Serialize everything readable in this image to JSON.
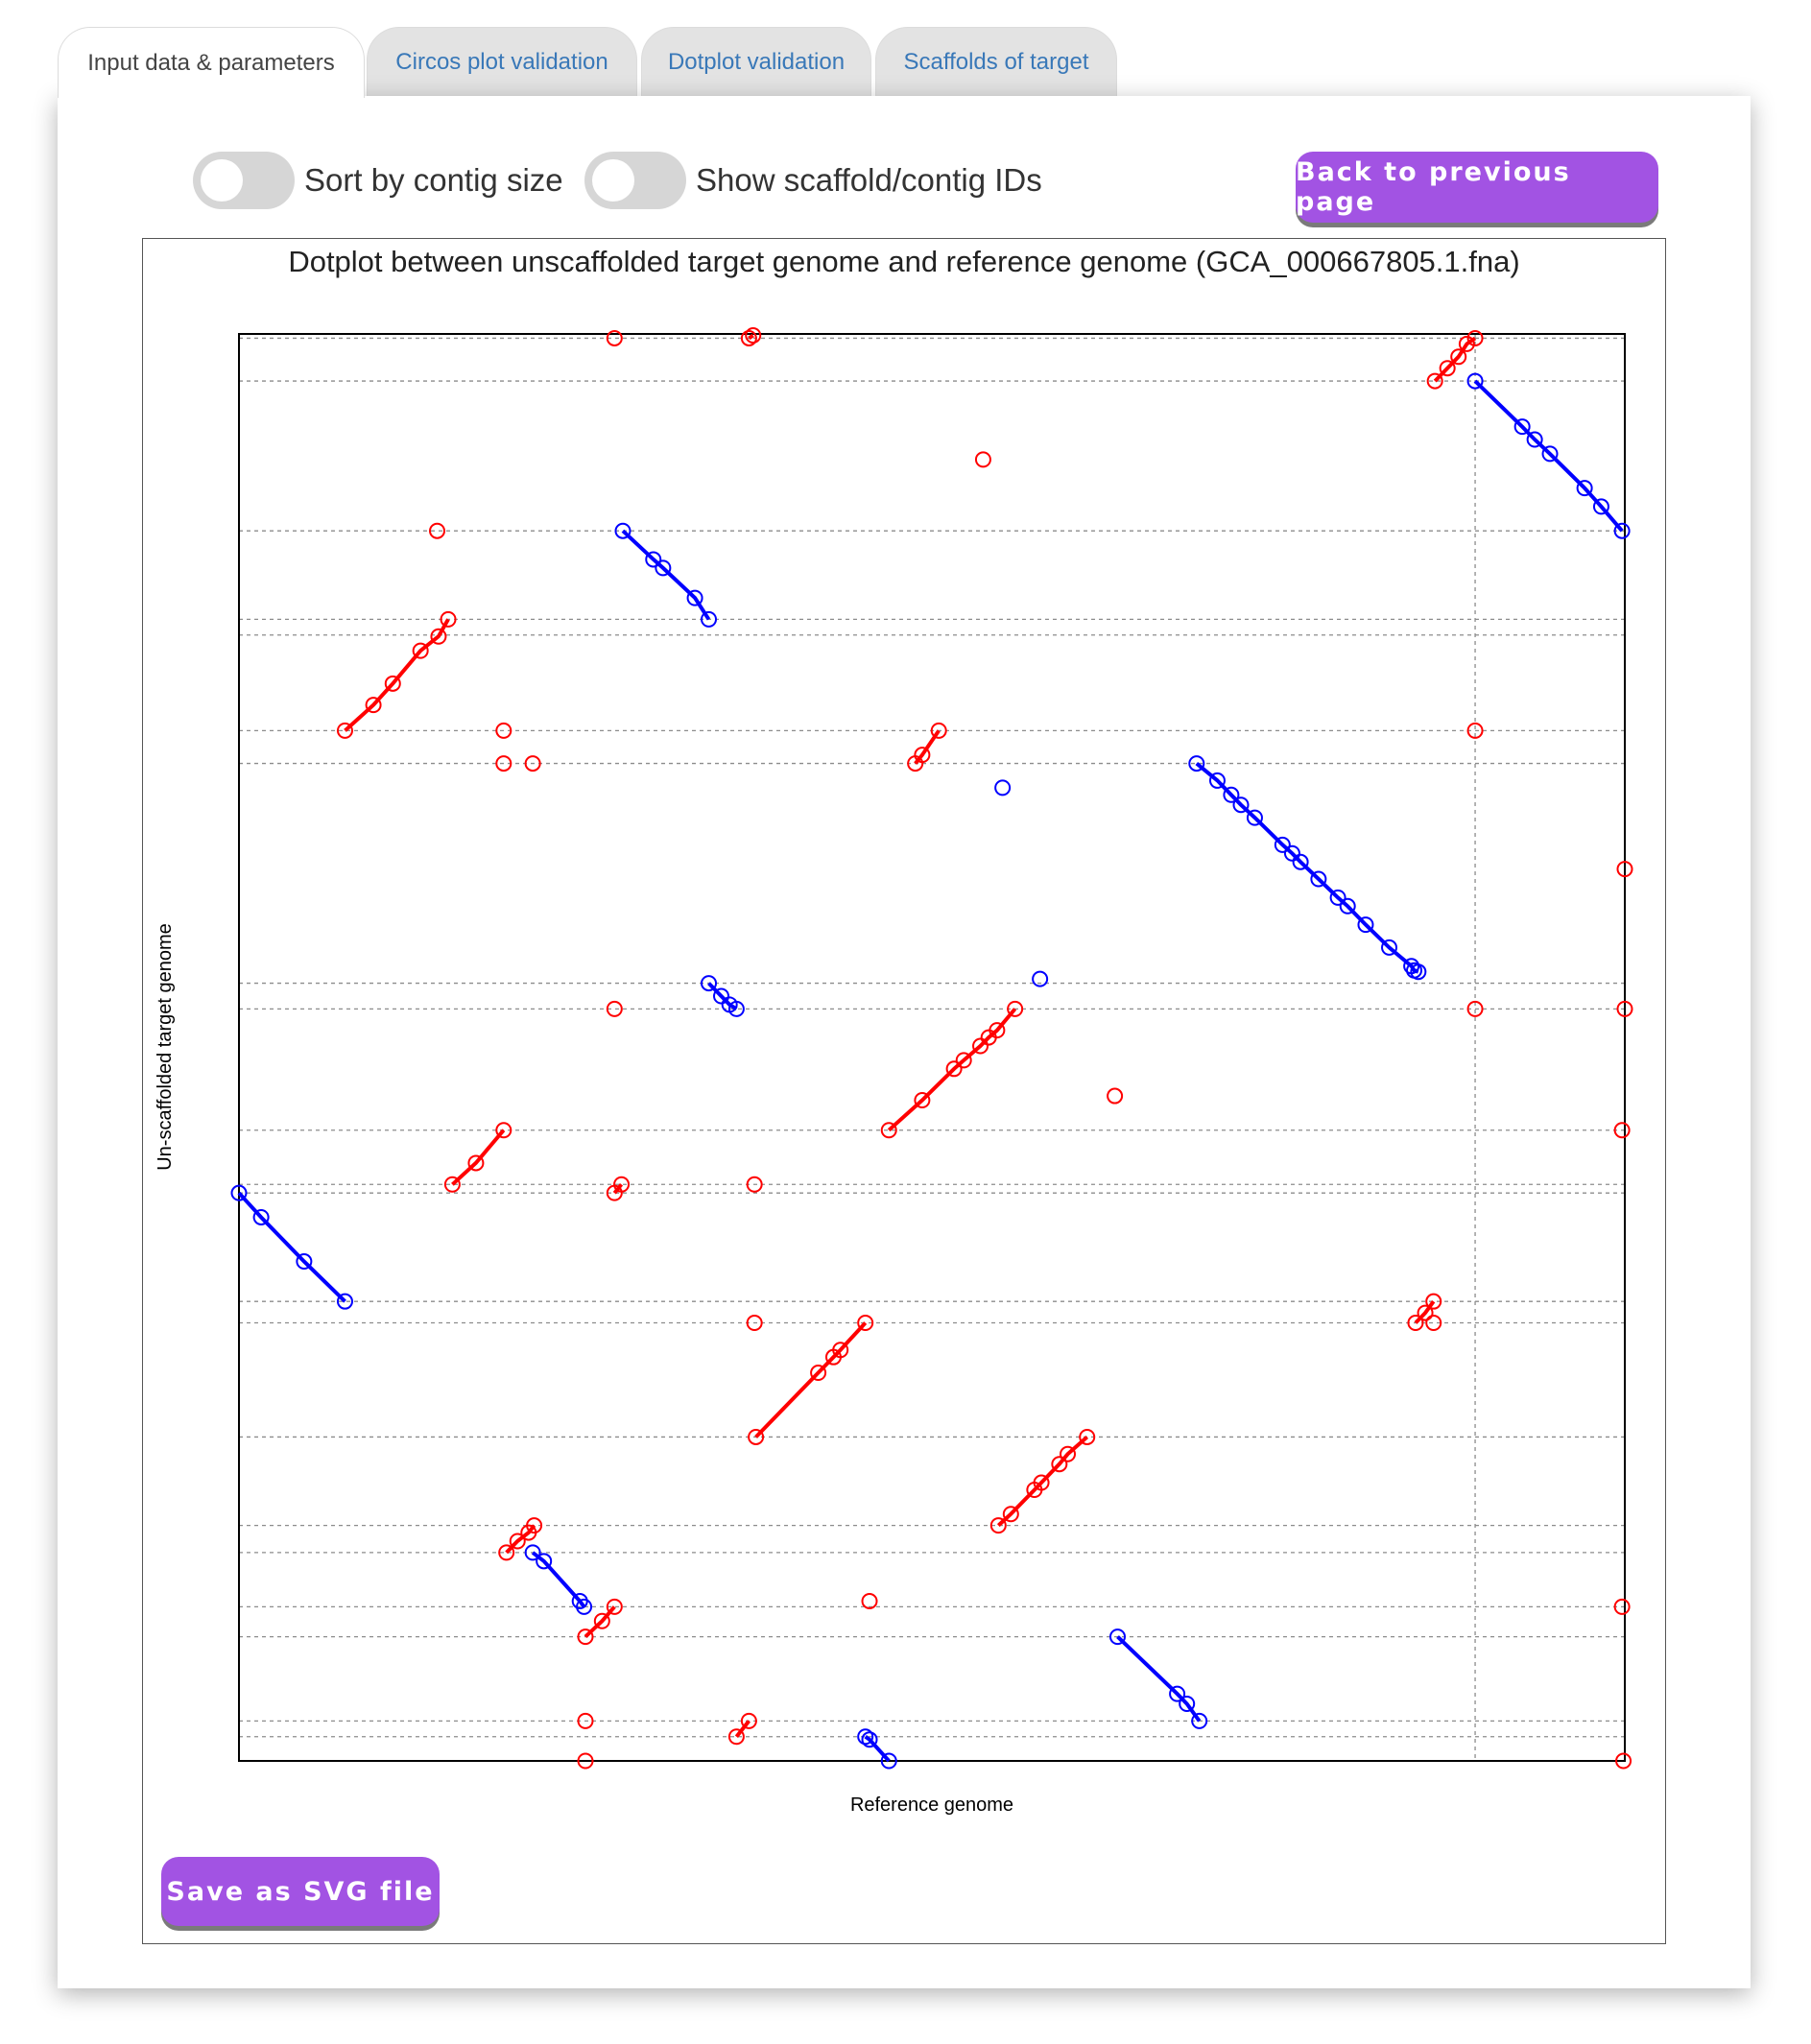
{
  "tabs": [
    {
      "label": "Input data & parameters",
      "active": true
    },
    {
      "label": "Circos plot validation",
      "active": false
    },
    {
      "label": "Dotplot validation",
      "active": false
    },
    {
      "label": "Scaffolds of target",
      "active": false
    }
  ],
  "controls": {
    "sort_toggle_label": "Sort by contig size",
    "sort_toggle_on": false,
    "ids_toggle_label": "Show scaffold/contig IDs",
    "ids_toggle_on": false,
    "back_button": "Back to previous page",
    "save_button": "Save as SVG file"
  },
  "colors": {
    "forward": "#ff0000",
    "reverse": "#0000ff",
    "button": "#a253e3"
  },
  "chart_data": {
    "type": "scatter",
    "title": "Dotplot between unscaffolded target genome and reference genome (GCA_000667805.1.fna)",
    "xlabel": "Reference genome",
    "ylabel": "Un-scaffolded target genome",
    "xlim": [
      0,
      1
    ],
    "ylim": [
      0,
      1
    ],
    "x_boundaries": [
      0.892
    ],
    "y_boundaries": [
      0.997,
      0.967,
      0.862,
      0.8,
      0.789,
      0.722,
      0.699,
      0.545,
      0.527,
      0.442,
      0.404,
      0.398,
      0.322,
      0.307,
      0.227,
      0.165,
      0.146,
      0.108,
      0.087,
      0.028,
      0.017
    ],
    "series": [
      {
        "orientation": "forward",
        "points": [
          [
            0.0765,
            0.722
          ],
          [
            0.097,
            0.74
          ],
          [
            0.111,
            0.755
          ],
          [
            0.131,
            0.778
          ],
          [
            0.144,
            0.788
          ],
          [
            0.151,
            0.8
          ]
        ]
      },
      {
        "orientation": "forward",
        "points": [
          [
            0.863,
            0.967
          ],
          [
            0.872,
            0.976
          ],
          [
            0.88,
            0.984
          ],
          [
            0.886,
            0.993
          ],
          [
            0.892,
            0.997
          ]
        ]
      },
      {
        "orientation": "forward",
        "points": [
          [
            0.488,
            0.699
          ],
          [
            0.493,
            0.705
          ],
          [
            0.505,
            0.722
          ]
        ]
      },
      {
        "orientation": "forward",
        "points": [
          [
            0.469,
            0.442
          ],
          [
            0.493,
            0.463
          ],
          [
            0.516,
            0.485
          ],
          [
            0.523,
            0.491
          ],
          [
            0.535,
            0.501
          ],
          [
            0.541,
            0.507
          ],
          [
            0.547,
            0.512
          ],
          [
            0.56,
            0.527
          ]
        ]
      },
      {
        "orientation": "forward",
        "points": [
          [
            0.154,
            0.404
          ],
          [
            0.171,
            0.419
          ],
          [
            0.191,
            0.442
          ]
        ]
      },
      {
        "orientation": "forward",
        "points": [
          [
            0.849,
            0.307
          ],
          [
            0.856,
            0.314
          ],
          [
            0.862,
            0.322
          ]
        ]
      },
      {
        "orientation": "forward",
        "points": [
          [
            0.373,
            0.227
          ],
          [
            0.418,
            0.272
          ],
          [
            0.429,
            0.283
          ],
          [
            0.434,
            0.288
          ],
          [
            0.452,
            0.307
          ]
        ]
      },
      {
        "orientation": "forward",
        "points": [
          [
            0.548,
            0.165
          ],
          [
            0.557,
            0.173
          ],
          [
            0.574,
            0.19
          ],
          [
            0.579,
            0.195
          ],
          [
            0.592,
            0.208
          ],
          [
            0.598,
            0.215
          ],
          [
            0.612,
            0.227
          ]
        ]
      },
      {
        "orientation": "forward",
        "points": [
          [
            0.193,
            0.146
          ],
          [
            0.201,
            0.154
          ],
          [
            0.209,
            0.16
          ],
          [
            0.213,
            0.165
          ]
        ]
      },
      {
        "orientation": "forward",
        "points": [
          [
            0.25,
            0.087
          ],
          [
            0.262,
            0.098
          ],
          [
            0.271,
            0.108
          ]
        ]
      },
      {
        "orientation": "forward",
        "points": [
          [
            0.359,
            0.017
          ],
          [
            0.368,
            0.028
          ]
        ]
      },
      {
        "orientation": "reverse",
        "points": [
          [
            0.892,
            0.967
          ],
          [
            0.926,
            0.935
          ],
          [
            0.935,
            0.926
          ],
          [
            0.946,
            0.916
          ],
          [
            0.971,
            0.892
          ],
          [
            0.983,
            0.879
          ],
          [
            0.998,
            0.862
          ]
        ]
      },
      {
        "orientation": "reverse",
        "points": [
          [
            0.277,
            0.862
          ],
          [
            0.299,
            0.842
          ],
          [
            0.306,
            0.836
          ],
          [
            0.329,
            0.815
          ],
          [
            0.339,
            0.8
          ]
        ]
      },
      {
        "orientation": "reverse",
        "points": [
          [
            0.691,
            0.699
          ],
          [
            0.706,
            0.687
          ],
          [
            0.716,
            0.677
          ],
          [
            0.723,
            0.67
          ],
          [
            0.733,
            0.661
          ],
          [
            0.753,
            0.642
          ],
          [
            0.76,
            0.636
          ],
          [
            0.766,
            0.63
          ],
          [
            0.779,
            0.618
          ],
          [
            0.793,
            0.605
          ],
          [
            0.8,
            0.599
          ],
          [
            0.813,
            0.586
          ],
          [
            0.83,
            0.57
          ],
          [
            0.846,
            0.557
          ],
          [
            0.848,
            0.554
          ],
          [
            0.851,
            0.553
          ]
        ]
      },
      {
        "orientation": "reverse",
        "points": [
          [
            0.339,
            0.545
          ],
          [
            0.348,
            0.536
          ],
          [
            0.354,
            0.53
          ],
          [
            0.359,
            0.527
          ]
        ]
      },
      {
        "orientation": "reverse",
        "points": [
          [
            0.0,
            0.398
          ],
          [
            0.016,
            0.381
          ],
          [
            0.047,
            0.35
          ],
          [
            0.0765,
            0.322
          ]
        ]
      },
      {
        "orientation": "reverse",
        "points": [
          [
            0.212,
            0.146
          ],
          [
            0.22,
            0.14
          ],
          [
            0.246,
            0.112
          ],
          [
            0.249,
            0.108
          ]
        ]
      },
      {
        "orientation": "reverse",
        "points": [
          [
            0.634,
            0.087
          ],
          [
            0.677,
            0.047
          ],
          [
            0.684,
            0.04
          ],
          [
            0.693,
            0.028
          ]
        ]
      },
      {
        "orientation": "reverse",
        "points": [
          [
            0.452,
            0.017
          ],
          [
            0.455,
            0.015
          ],
          [
            0.469,
            0.0
          ]
        ]
      },
      {
        "orientation": "forward",
        "points": [
          [
            0.271,
            0.997
          ]
        ]
      },
      {
        "orientation": "forward",
        "points": [
          [
            0.368,
            0.997
          ],
          [
            0.371,
            0.999
          ]
        ]
      },
      {
        "orientation": "forward",
        "points": [
          [
            0.537,
            0.912
          ]
        ]
      },
      {
        "orientation": "forward",
        "points": [
          [
            0.143,
            0.862
          ]
        ]
      },
      {
        "orientation": "forward",
        "points": [
          [
            0.191,
            0.722
          ]
        ]
      },
      {
        "orientation": "forward",
        "points": [
          [
            0.892,
            0.722
          ]
        ]
      },
      {
        "orientation": "forward",
        "points": [
          [
            0.191,
            0.699
          ]
        ]
      },
      {
        "orientation": "forward",
        "points": [
          [
            0.212,
            0.699
          ]
        ]
      },
      {
        "orientation": "forward",
        "points": [
          [
            1.0,
            0.625
          ]
        ]
      },
      {
        "orientation": "forward",
        "points": [
          [
            0.271,
            0.527
          ]
        ]
      },
      {
        "orientation": "forward",
        "points": [
          [
            0.892,
            0.527
          ]
        ]
      },
      {
        "orientation": "forward",
        "points": [
          [
            1.0,
            0.527
          ]
        ]
      },
      {
        "orientation": "forward",
        "points": [
          [
            0.632,
            0.466
          ]
        ]
      },
      {
        "orientation": "forward",
        "points": [
          [
            0.998,
            0.442
          ]
        ]
      },
      {
        "orientation": "forward",
        "points": [
          [
            0.271,
            0.398
          ],
          [
            0.276,
            0.404
          ]
        ]
      },
      {
        "orientation": "forward",
        "points": [
          [
            0.372,
            0.404
          ]
        ]
      },
      {
        "orientation": "forward",
        "points": [
          [
            0.372,
            0.307
          ]
        ]
      },
      {
        "orientation": "forward",
        "points": [
          [
            0.862,
            0.307
          ]
        ]
      },
      {
        "orientation": "forward",
        "points": [
          [
            0.455,
            0.112
          ]
        ]
      },
      {
        "orientation": "forward",
        "points": [
          [
            0.998,
            0.108
          ]
        ]
      },
      {
        "orientation": "forward",
        "points": [
          [
            0.25,
            0.028
          ]
        ]
      },
      {
        "orientation": "forward",
        "points": [
          [
            0.25,
            0.0
          ]
        ]
      },
      {
        "orientation": "forward",
        "points": [
          [
            0.999,
            0.0
          ]
        ]
      },
      {
        "orientation": "reverse",
        "points": [
          [
            0.551,
            0.682
          ]
        ]
      },
      {
        "orientation": "reverse",
        "points": [
          [
            0.578,
            0.548
          ]
        ]
      }
    ],
    "grid": true,
    "legend": false
  }
}
